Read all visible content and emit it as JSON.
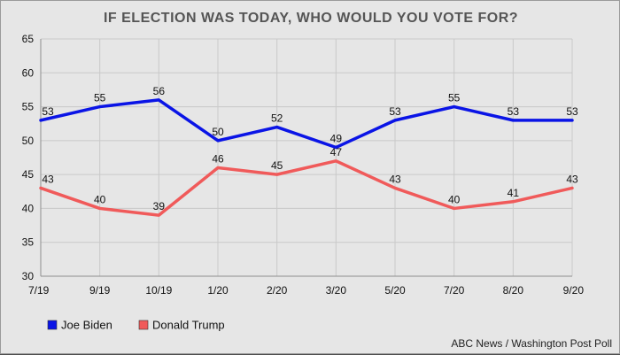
{
  "chart_data": {
    "type": "line",
    "title": "IF ELECTION WAS TODAY, WHO WOULD YOU VOTE FOR?",
    "categories": [
      "7/19",
      "9/19",
      "10/19",
      "1/20",
      "2/20",
      "3/20",
      "5/20",
      "7/20",
      "8/20",
      "9/20"
    ],
    "series": [
      {
        "name": "Joe Biden",
        "color": "#0a14e6",
        "values": [
          53,
          55,
          56,
          50,
          52,
          49,
          53,
          55,
          53,
          53
        ]
      },
      {
        "name": "Donald Trump",
        "color": "#f05a5a",
        "values": [
          43,
          40,
          39,
          46,
          45,
          47,
          43,
          40,
          41,
          43
        ]
      }
    ],
    "ylim": [
      30,
      65
    ],
    "yticks": [
      30,
      35,
      40,
      45,
      50,
      55,
      60,
      65
    ],
    "grid": true,
    "legend": "bottom-left",
    "xlabel": "",
    "ylabel": ""
  },
  "source": "ABC News / Washington Post Poll",
  "colors": {
    "background": "#e6e6e6",
    "grid": "#c9c9c9"
  }
}
